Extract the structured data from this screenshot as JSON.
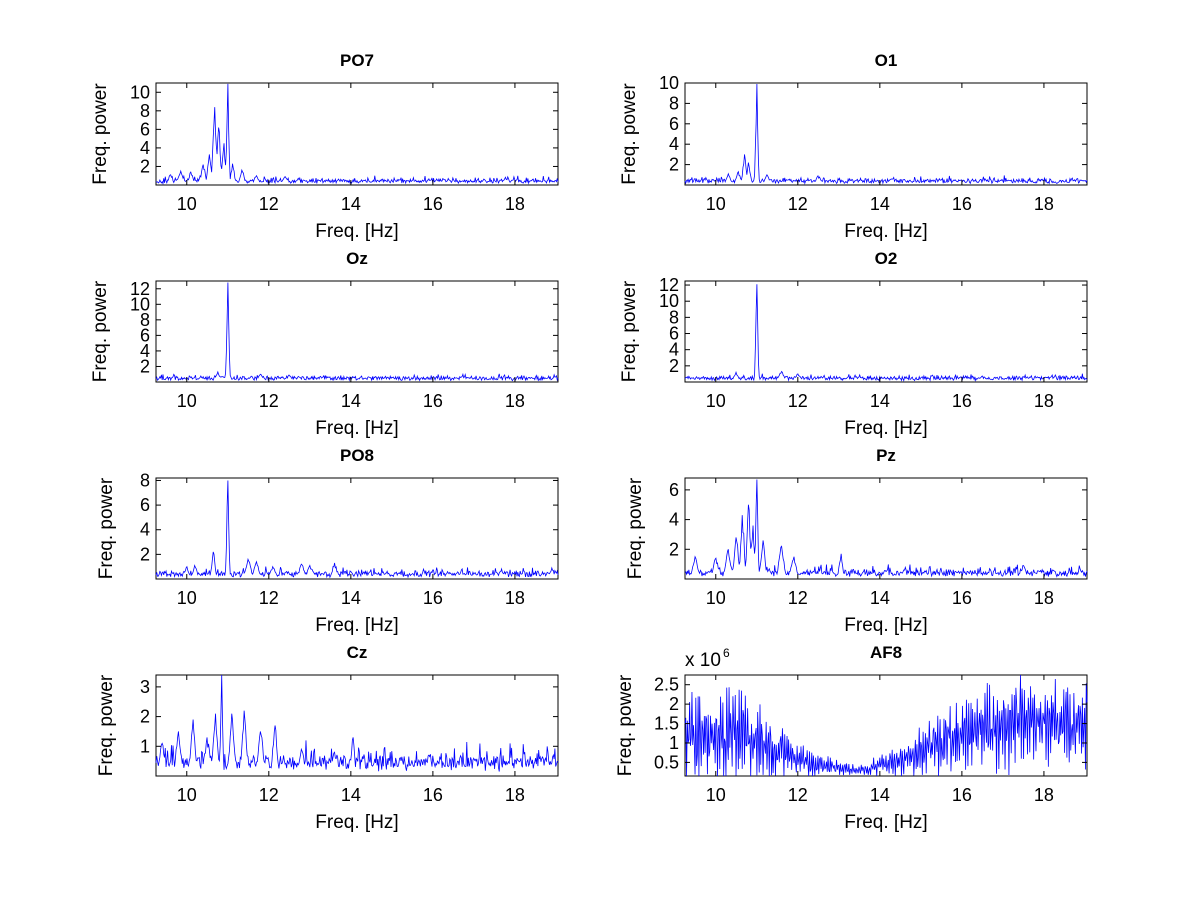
{
  "figure": {
    "background": "#ffffff",
    "line_color": "#0000ff",
    "axis_color": "#000000"
  },
  "chart_data": [
    {
      "type": "line",
      "title": "PO7",
      "xlabel": "Freq. [Hz]",
      "ylabel": "Freq. power",
      "xlim": [
        9.25,
        19.05
      ],
      "ylim": [
        0,
        11
      ],
      "xticks": [
        10,
        12,
        14,
        16,
        18
      ],
      "yticks": [
        2,
        4,
        6,
        8,
        10
      ],
      "baseline": 0.4,
      "noise": 0.35,
      "features": [
        {
          "x": 9.6,
          "y": 1.1,
          "w": 0.05
        },
        {
          "x": 9.85,
          "y": 1.5,
          "w": 0.05
        },
        {
          "x": 10.1,
          "y": 1.4,
          "w": 0.05
        },
        {
          "x": 10.4,
          "y": 2.2,
          "w": 0.05
        },
        {
          "x": 10.55,
          "y": 3.3,
          "w": 0.04
        },
        {
          "x": 10.68,
          "y": 8.4,
          "w": 0.04
        },
        {
          "x": 10.78,
          "y": 6.2,
          "w": 0.04
        },
        {
          "x": 10.9,
          "y": 4.5,
          "w": 0.04
        },
        {
          "x": 11.0,
          "y": 10.9,
          "w": 0.025
        },
        {
          "x": 11.12,
          "y": 2.3,
          "w": 0.04
        },
        {
          "x": 11.35,
          "y": 1.6,
          "w": 0.05
        },
        {
          "x": 11.7,
          "y": 1.0,
          "w": 0.06
        },
        {
          "x": 12.4,
          "y": 0.9,
          "w": 0.06
        }
      ]
    },
    {
      "type": "line",
      "title": "O1",
      "xlabel": "Freq. [Hz]",
      "ylabel": "Freq. power",
      "xlim": [
        9.25,
        19.05
      ],
      "ylim": [
        0,
        10
      ],
      "xticks": [
        10,
        12,
        14,
        16,
        18
      ],
      "yticks": [
        2,
        4,
        6,
        8,
        10
      ],
      "baseline": 0.4,
      "noise": 0.3,
      "features": [
        {
          "x": 10.3,
          "y": 1.1,
          "w": 0.05
        },
        {
          "x": 10.55,
          "y": 1.3,
          "w": 0.05
        },
        {
          "x": 10.7,
          "y": 3.0,
          "w": 0.04
        },
        {
          "x": 10.8,
          "y": 2.2,
          "w": 0.04
        },
        {
          "x": 11.0,
          "y": 9.9,
          "w": 0.025
        },
        {
          "x": 11.25,
          "y": 1.0,
          "w": 0.05
        },
        {
          "x": 12.5,
          "y": 0.9,
          "w": 0.06
        }
      ]
    },
    {
      "type": "line",
      "title": "Oz",
      "xlabel": "Freq. [Hz]",
      "ylabel": "Freq. power",
      "xlim": [
        9.25,
        19.05
      ],
      "ylim": [
        0,
        13
      ],
      "xticks": [
        10,
        12,
        14,
        16,
        18
      ],
      "yticks": [
        2,
        4,
        6,
        8,
        10,
        12
      ],
      "baseline": 0.5,
      "noise": 0.3,
      "features": [
        {
          "x": 10.75,
          "y": 1.3,
          "w": 0.05
        },
        {
          "x": 11.0,
          "y": 12.8,
          "w": 0.025
        },
        {
          "x": 11.8,
          "y": 1.0,
          "w": 0.06
        },
        {
          "x": 12.5,
          "y": 0.9,
          "w": 0.06
        }
      ]
    },
    {
      "type": "line",
      "title": "O2",
      "xlabel": "Freq. [Hz]",
      "ylabel": "Freq. power",
      "xlim": [
        9.25,
        19.05
      ],
      "ylim": [
        0,
        12.5
      ],
      "xticks": [
        10,
        12,
        14,
        16,
        18
      ],
      "yticks": [
        2,
        4,
        6,
        8,
        10,
        12
      ],
      "baseline": 0.5,
      "noise": 0.3,
      "features": [
        {
          "x": 10.5,
          "y": 1.2,
          "w": 0.05
        },
        {
          "x": 11.0,
          "y": 12.1,
          "w": 0.025
        },
        {
          "x": 11.6,
          "y": 1.3,
          "w": 0.06
        },
        {
          "x": 12.0,
          "y": 1.0,
          "w": 0.06
        }
      ]
    },
    {
      "type": "line",
      "title": "PO8",
      "xlabel": "Freq. [Hz]",
      "ylabel": "Freq. power",
      "xlim": [
        9.25,
        19.05
      ],
      "ylim": [
        0,
        8.2
      ],
      "xticks": [
        10,
        12,
        14,
        16,
        18
      ],
      "yticks": [
        2,
        4,
        6,
        8
      ],
      "baseline": 0.4,
      "noise": 0.35,
      "features": [
        {
          "x": 10.0,
          "y": 1.0,
          "w": 0.05
        },
        {
          "x": 10.2,
          "y": 1.1,
          "w": 0.05
        },
        {
          "x": 10.65,
          "y": 2.2,
          "w": 0.04
        },
        {
          "x": 11.0,
          "y": 8.0,
          "w": 0.025
        },
        {
          "x": 11.5,
          "y": 1.6,
          "w": 0.06
        },
        {
          "x": 11.7,
          "y": 1.4,
          "w": 0.06
        },
        {
          "x": 12.1,
          "y": 1.0,
          "w": 0.06
        },
        {
          "x": 12.8,
          "y": 1.2,
          "w": 0.06
        },
        {
          "x": 13.0,
          "y": 1.1,
          "w": 0.06
        },
        {
          "x": 13.6,
          "y": 1.3,
          "w": 0.05
        },
        {
          "x": 18.9,
          "y": 0.9,
          "w": 0.04
        }
      ]
    },
    {
      "type": "line",
      "title": "Pz",
      "xlabel": "Freq. [Hz]",
      "ylabel": "Freq. power",
      "xlim": [
        9.25,
        19.05
      ],
      "ylim": [
        0,
        6.8
      ],
      "xticks": [
        10,
        12,
        14,
        16,
        18
      ],
      "yticks": [
        2,
        4,
        6
      ],
      "baseline": 0.4,
      "noise": 0.35,
      "features": [
        {
          "x": 9.5,
          "y": 1.5,
          "w": 0.06
        },
        {
          "x": 10.0,
          "y": 1.4,
          "w": 0.06
        },
        {
          "x": 10.3,
          "y": 2.0,
          "w": 0.06
        },
        {
          "x": 10.5,
          "y": 2.8,
          "w": 0.05
        },
        {
          "x": 10.65,
          "y": 4.3,
          "w": 0.04
        },
        {
          "x": 10.8,
          "y": 5.0,
          "w": 0.04
        },
        {
          "x": 10.9,
          "y": 3.6,
          "w": 0.04
        },
        {
          "x": 11.0,
          "y": 6.7,
          "w": 0.025
        },
        {
          "x": 11.15,
          "y": 2.6,
          "w": 0.05
        },
        {
          "x": 11.6,
          "y": 2.2,
          "w": 0.06
        },
        {
          "x": 11.9,
          "y": 1.5,
          "w": 0.06
        },
        {
          "x": 13.05,
          "y": 1.7,
          "w": 0.04
        },
        {
          "x": 17.5,
          "y": 0.9,
          "w": 0.06
        }
      ]
    },
    {
      "type": "line",
      "title": "Cz",
      "xlabel": "Freq. [Hz]",
      "ylabel": "Freq. power",
      "xlim": [
        9.25,
        19.05
      ],
      "ylim": [
        0,
        3.4
      ],
      "xticks": [
        10,
        12,
        14,
        16,
        18
      ],
      "yticks": [
        1,
        2,
        3
      ],
      "baseline": 0.4,
      "noise": 0.45,
      "features": [
        {
          "x": 9.4,
          "y": 1.1,
          "w": 0.06
        },
        {
          "x": 9.8,
          "y": 1.5,
          "w": 0.06
        },
        {
          "x": 10.15,
          "y": 1.9,
          "w": 0.05
        },
        {
          "x": 10.5,
          "y": 1.3,
          "w": 0.06
        },
        {
          "x": 10.7,
          "y": 2.1,
          "w": 0.05
        },
        {
          "x": 10.85,
          "y": 3.4,
          "w": 0.025
        },
        {
          "x": 11.1,
          "y": 2.1,
          "w": 0.05
        },
        {
          "x": 11.4,
          "y": 2.2,
          "w": 0.05
        },
        {
          "x": 11.8,
          "y": 1.5,
          "w": 0.06
        },
        {
          "x": 12.15,
          "y": 1.7,
          "w": 0.05
        },
        {
          "x": 12.8,
          "y": 0.9,
          "w": 0.06
        },
        {
          "x": 13.6,
          "y": 0.8,
          "w": 0.06
        },
        {
          "x": 14.05,
          "y": 1.3,
          "w": 0.04
        },
        {
          "x": 15.9,
          "y": 0.7,
          "w": 0.06
        }
      ]
    },
    {
      "type": "line",
      "title": "AF8",
      "xlabel": "Freq. [Hz]",
      "ylabel": "Freq. power",
      "y_multiplier": "x 10",
      "y_multiplier_exponent": "6",
      "xlim": [
        9.25,
        19.05
      ],
      "ylim": [
        0.15,
        2.75
      ],
      "xticks": [
        10,
        12,
        14,
        16,
        18
      ],
      "yticks": [
        0.5,
        1,
        1.5,
        2,
        2.5
      ],
      "envelope": [
        {
          "x": 9.25,
          "y": 1.35
        },
        {
          "x": 10.5,
          "y": 1.25
        },
        {
          "x": 11.5,
          "y": 0.8
        },
        {
          "x": 12.5,
          "y": 0.45
        },
        {
          "x": 13.5,
          "y": 0.3
        },
        {
          "x": 14.5,
          "y": 0.55
        },
        {
          "x": 15.5,
          "y": 1.0
        },
        {
          "x": 16.5,
          "y": 1.35
        },
        {
          "x": 17.5,
          "y": 1.5
        },
        {
          "x": 19.05,
          "y": 1.45
        }
      ],
      "amplitude": [
        {
          "x": 9.25,
          "y": 1.25
        },
        {
          "x": 10.5,
          "y": 1.2
        },
        {
          "x": 11.5,
          "y": 0.75
        },
        {
          "x": 12.5,
          "y": 0.3
        },
        {
          "x": 13.5,
          "y": 0.12
        },
        {
          "x": 14.5,
          "y": 0.45
        },
        {
          "x": 15.5,
          "y": 0.85
        },
        {
          "x": 16.5,
          "y": 1.2
        },
        {
          "x": 17.5,
          "y": 1.3
        },
        {
          "x": 19.05,
          "y": 1.25
        }
      ]
    }
  ]
}
